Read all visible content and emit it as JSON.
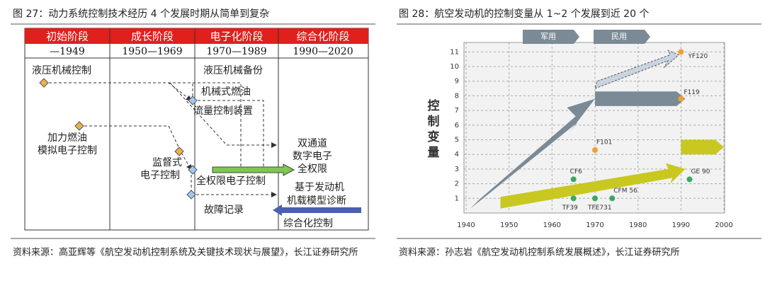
{
  "left": {
    "title": "图 27：动力系统控制技术经历 4 个发展时期从简单到复杂",
    "headers": [
      "初始阶段",
      "成长阶段",
      "电子化阶段",
      "综合化阶段"
    ],
    "periods": [
      "—1949",
      "1950—1969",
      "1970—1989",
      "1990—2020"
    ],
    "labels": [
      "液压机械控制",
      "液压机械备份",
      "机械式燃油",
      "流量控制装置",
      "加力燃油",
      "模拟电子控制",
      "双通道",
      "数字电子",
      "全权限",
      "监督式",
      "电子控制",
      "全权限电子控制",
      "基于发动机",
      "机载模型诊断",
      "故障记录",
      "综合化控制"
    ],
    "source": "资料来源：高亚辉等《航空发动机控制系统及关键技术现状与展望》，长江证券研究所"
  },
  "chart_data": {
    "type": "scatter",
    "title": "图 28：航空发动机的控制变量从 1~2 个发展到近 20 个",
    "ylabel": "控制变量",
    "banners": [
      "军用",
      "民用"
    ],
    "x": [
      1990,
      1990,
      1970,
      1992,
      1965,
      1965,
      1970,
      1974
    ],
    "values": [
      11,
      7.8,
      4.3,
      2.3,
      2.3,
      1,
      1,
      1
    ],
    "point_labels": [
      "YF120",
      "F119",
      "F101",
      "GE 90",
      "CF6",
      "TF39",
      "TFE731",
      "CFM 56"
    ],
    "colors": [
      "#f0a030",
      "#f0a030",
      "#f0a030",
      "#3aa860",
      "#3aa860",
      "#3aa860",
      "#3aa860",
      "#3aa860"
    ],
    "xlim": [
      1940,
      2000
    ],
    "xticks": [
      1940,
      1950,
      1960,
      1970,
      1980,
      1990,
      2000
    ],
    "ylim": [
      0,
      11.5
    ],
    "yticks": [
      1,
      2,
      3,
      4,
      5,
      6,
      7,
      8,
      9,
      10,
      11
    ],
    "grid": true,
    "source": "资料来源：孙志岩《航空发动机控制系统发展概述》，长江证券研究所"
  }
}
